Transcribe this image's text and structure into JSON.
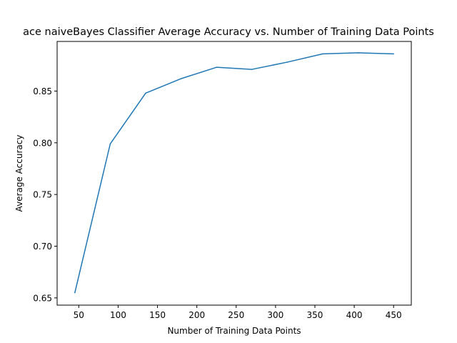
{
  "chart_data": {
    "type": "line",
    "title": "ace naiveBayes Classifier   Average Accuracy vs. Number of Training Data Points",
    "xlabel": "Number of Training Data Points",
    "ylabel": "Average Accuracy",
    "xlim": [
      22.5,
      472.5
    ],
    "ylim": [
      0.643,
      0.898
    ],
    "xticks": [
      50,
      100,
      150,
      200,
      250,
      300,
      350,
      400,
      450
    ],
    "yticks": [
      0.65,
      0.7,
      0.75,
      0.8,
      0.85
    ],
    "ytick_labels": [
      "0.65",
      "0.70",
      "0.75",
      "0.80",
      "0.85"
    ],
    "grid": false,
    "line_color": "#1f77b4",
    "series": [
      {
        "x": [
          45,
          90,
          135,
          180,
          225,
          270,
          315,
          360,
          405,
          450
        ],
        "y": [
          0.655,
          0.799,
          0.848,
          0.862,
          0.873,
          0.871,
          0.878,
          0.886,
          0.887,
          0.886
        ]
      }
    ]
  }
}
